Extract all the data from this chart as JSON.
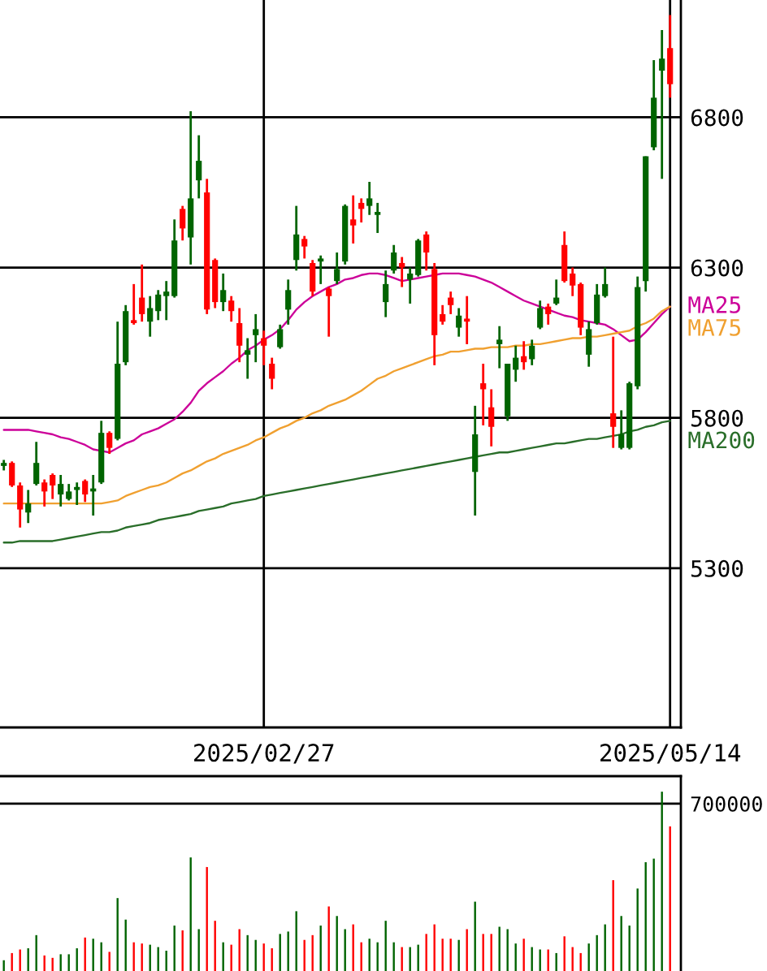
{
  "chart_data": [
    {
      "type": "candlestick",
      "categories": [
        null,
        null,
        null,
        null,
        null,
        null,
        null,
        null,
        null,
        null,
        null,
        null,
        null,
        null,
        null,
        null,
        null,
        null,
        null,
        null,
        null,
        null,
        null,
        null,
        null,
        null,
        null,
        null,
        null,
        null,
        null,
        null,
        "2025/02/27",
        null,
        null,
        null,
        null,
        null,
        null,
        null,
        null,
        null,
        null,
        null,
        null,
        null,
        null,
        null,
        null,
        null,
        null,
        null,
        null,
        null,
        null,
        null,
        null,
        null,
        null,
        null,
        null,
        null,
        null,
        null,
        null,
        null,
        null,
        null,
        null,
        null,
        null,
        null,
        null,
        null,
        null,
        null,
        null,
        null,
        null,
        null,
        null,
        null,
        "2025/05/14"
      ],
      "ohlc": [
        [
          5640,
          5660,
          5625,
          5650
        ],
        [
          5650,
          5655,
          5570,
          5575
        ],
        [
          5575,
          5585,
          5435,
          5495
        ],
        [
          5485,
          5560,
          5450,
          5515
        ],
        [
          5580,
          5720,
          5575,
          5650
        ],
        [
          5585,
          5595,
          5505,
          5555
        ],
        [
          5610,
          5615,
          5530,
          5575
        ],
        [
          5545,
          5610,
          5505,
          5580
        ],
        [
          5530,
          5580,
          5525,
          5555
        ],
        [
          5560,
          5585,
          5510,
          5570
        ],
        [
          5590,
          5595,
          5520,
          5545
        ],
        [
          5555,
          5610,
          5475,
          5565
        ],
        [
          5585,
          5790,
          5580,
          5750
        ],
        [
          5750,
          5755,
          5680,
          5700
        ],
        [
          5730,
          6120,
          5725,
          5980
        ],
        [
          5985,
          6175,
          5975,
          6155
        ],
        [
          6125,
          6245,
          6110,
          6115
        ],
        [
          6200,
          6310,
          6120,
          6145
        ],
        [
          6120,
          6205,
          6070,
          6165
        ],
        [
          6155,
          6225,
          6125,
          6210
        ],
        [
          6205,
          6255,
          6125,
          6220
        ],
        [
          6205,
          6460,
          6200,
          6390
        ],
        [
          6495,
          6505,
          6390,
          6430
        ],
        [
          6400,
          6820,
          6310,
          6530
        ],
        [
          6590,
          6740,
          6530,
          6655
        ],
        [
          6550,
          6595,
          6145,
          6160
        ],
        [
          6325,
          6330,
          6165,
          6185
        ],
        [
          6185,
          6280,
          6155,
          6225
        ],
        [
          6190,
          6205,
          6120,
          6155
        ],
        [
          6115,
          6165,
          5985,
          6040
        ],
        [
          6010,
          6065,
          5930,
          6025
        ],
        [
          6075,
          6145,
          5985,
          6095
        ],
        [
          6065,
          6090,
          5975,
          6040
        ],
        [
          5980,
          6000,
          5895,
          5930
        ],
        [
          6035,
          6110,
          6030,
          6095
        ],
        [
          6160,
          6260,
          6110,
          6225
        ],
        [
          6325,
          6505,
          6290,
          6410
        ],
        [
          6395,
          6405,
          6330,
          6370
        ],
        [
          6315,
          6325,
          6205,
          6220
        ],
        [
          6320,
          6340,
          6245,
          6330
        ],
        [
          6230,
          6235,
          6070,
          6205
        ],
        [
          6255,
          6350,
          6245,
          6295
        ],
        [
          6320,
          6510,
          6310,
          6505
        ],
        [
          6460,
          6540,
          6380,
          6440
        ],
        [
          6515,
          6530,
          6450,
          6495
        ],
        [
          6505,
          6585,
          6475,
          6530
        ],
        [
          6475,
          6515,
          6415,
          6485
        ],
        [
          6185,
          6290,
          6135,
          6245
        ],
        [
          6290,
          6375,
          6280,
          6350
        ],
        [
          6315,
          6335,
          6235,
          6300
        ],
        [
          6260,
          6300,
          6180,
          6280
        ],
        [
          6275,
          6395,
          6270,
          6390
        ],
        [
          6410,
          6420,
          6290,
          6350
        ],
        [
          6295,
          6315,
          5975,
          6075
        ],
        [
          6145,
          6175,
          6110,
          6120
        ],
        [
          6200,
          6220,
          6145,
          6175
        ],
        [
          6100,
          6165,
          6070,
          6140
        ],
        [
          6130,
          6205,
          6045,
          6120
        ],
        [
          5620,
          5840,
          5475,
          5745
        ],
        [
          5915,
          5980,
          5775,
          5895
        ],
        [
          5835,
          5895,
          5705,
          5770
        ],
        [
          6045,
          6105,
          5965,
          6060
        ],
        [
          5805,
          5980,
          5790,
          5980
        ],
        [
          5960,
          6040,
          5920,
          6000
        ],
        [
          6005,
          6055,
          5960,
          5985
        ],
        [
          5995,
          6060,
          5975,
          6040
        ],
        [
          6100,
          6190,
          6095,
          6165
        ],
        [
          6170,
          6180,
          6110,
          6145
        ],
        [
          6180,
          6260,
          6175,
          6200
        ],
        [
          6375,
          6420,
          6250,
          6255
        ],
        [
          6280,
          6300,
          6205,
          6240
        ],
        [
          6245,
          6250,
          6075,
          6100
        ],
        [
          6010,
          6120,
          5970,
          6095
        ],
        [
          6115,
          6245,
          6110,
          6210
        ],
        [
          6205,
          6300,
          6200,
          6245
        ],
        [
          5815,
          6070,
          5700,
          5770
        ],
        [
          5700,
          5825,
          5695,
          5745
        ],
        [
          5700,
          5920,
          5695,
          5915
        ],
        [
          5905,
          6270,
          5895,
          6235
        ],
        [
          6255,
          6670,
          6220,
          6670
        ],
        [
          6700,
          6990,
          6690,
          6865
        ],
        [
          6955,
          7090,
          6595,
          6995
        ],
        [
          7030,
          7140,
          6865,
          6910
        ]
      ],
      "colors": [
        "#006400",
        "#ff0000",
        "#ff0000",
        "#006400",
        "#006400",
        "#ff0000",
        "#ff0000",
        "#006400",
        "#006400",
        "#006400",
        "#ff0000",
        "#006400",
        "#006400",
        "#ff0000",
        "#006400",
        "#006400",
        "#ff0000",
        "#ff0000",
        "#006400",
        "#006400",
        "#006400",
        "#006400",
        "#ff0000",
        "#006400",
        "#006400",
        "#ff0000",
        "#ff0000",
        "#006400",
        "#ff0000",
        "#ff0000",
        "#006400",
        "#006400",
        "#ff0000",
        "#ff0000",
        "#006400",
        "#006400",
        "#006400",
        "#ff0000",
        "#ff0000",
        "#006400",
        "#ff0000",
        "#006400",
        "#006400",
        "#ff0000",
        "#ff0000",
        "#006400",
        "#006400",
        "#006400",
        "#006400",
        "#ff0000",
        "#006400",
        "#006400",
        "#ff0000",
        "#ff0000",
        "#ff0000",
        "#ff0000",
        "#006400",
        "#ff0000",
        "#006400",
        "#ff0000",
        "#ff0000",
        "#006400",
        "#006400",
        "#006400",
        "#ff0000",
        "#006400",
        "#006400",
        "#ff0000",
        "#006400",
        "#ff0000",
        "#ff0000",
        "#ff0000",
        "#006400",
        "#006400",
        "#006400",
        "#ff0000",
        "#006400",
        "#006400",
        "#006400",
        "#006400",
        "#006400",
        "#006400",
        "#ff0000"
      ],
      "series": [
        {
          "name": "MA25",
          "type": "line",
          "color": "#cc0099",
          "values": [
            5760,
            5760,
            5760,
            5760,
            5755,
            5750,
            5745,
            5735,
            5730,
            5720,
            5710,
            5695,
            5690,
            5685,
            5700,
            5715,
            5725,
            5745,
            5755,
            5765,
            5780,
            5795,
            5820,
            5850,
            5890,
            5915,
            5935,
            5955,
            5980,
            6000,
            6025,
            6040,
            6060,
            6075,
            6095,
            6125,
            6160,
            6185,
            6205,
            6220,
            6235,
            6245,
            6260,
            6265,
            6275,
            6280,
            6280,
            6275,
            6265,
            6255,
            6260,
            6265,
            6270,
            6275,
            6280,
            6280,
            6280,
            6275,
            6270,
            6260,
            6250,
            6235,
            6220,
            6205,
            6190,
            6180,
            6170,
            6160,
            6150,
            6140,
            6135,
            6125,
            6120,
            6115,
            6110,
            6095,
            6075,
            6055,
            6060,
            6085,
            6115,
            6145,
            6170
          ]
        },
        {
          "name": "MA75",
          "type": "line",
          "color": "#f0a030",
          "values": [
            5515,
            5515,
            5515,
            5515,
            5515,
            5515,
            5515,
            5515,
            5515,
            5515,
            5515,
            5515,
            5515,
            5520,
            5525,
            5540,
            5550,
            5560,
            5570,
            5575,
            5585,
            5600,
            5615,
            5625,
            5640,
            5655,
            5665,
            5680,
            5690,
            5700,
            5710,
            5725,
            5735,
            5750,
            5765,
            5775,
            5790,
            5800,
            5815,
            5825,
            5840,
            5850,
            5860,
            5875,
            5890,
            5910,
            5930,
            5940,
            5955,
            5965,
            5975,
            5985,
            5995,
            6005,
            6010,
            6020,
            6020,
            6025,
            6030,
            6030,
            6035,
            6035,
            6035,
            6040,
            6040,
            6045,
            6045,
            6050,
            6055,
            6060,
            6065,
            6065,
            6070,
            6070,
            6075,
            6080,
            6085,
            6090,
            6105,
            6115,
            6130,
            6155,
            6170
          ]
        },
        {
          "name": "MA200",
          "type": "line",
          "color": "#2a6e2a",
          "values": [
            5385,
            5385,
            5390,
            5390,
            5390,
            5390,
            5390,
            5395,
            5400,
            5405,
            5410,
            5415,
            5420,
            5420,
            5425,
            5435,
            5440,
            5445,
            5450,
            5460,
            5465,
            5470,
            5475,
            5480,
            5490,
            5495,
            5500,
            5505,
            5515,
            5520,
            5525,
            5530,
            5540,
            5545,
            5550,
            5555,
            5560,
            5565,
            5570,
            5575,
            5580,
            5585,
            5590,
            5595,
            5600,
            5605,
            5610,
            5615,
            5620,
            5625,
            5630,
            5635,
            5640,
            5645,
            5650,
            5655,
            5660,
            5665,
            5670,
            5675,
            5680,
            5685,
            5685,
            5690,
            5695,
            5700,
            5705,
            5710,
            5715,
            5715,
            5720,
            5725,
            5730,
            5730,
            5735,
            5740,
            5745,
            5755,
            5760,
            5770,
            5775,
            5785,
            5790
          ]
        }
      ],
      "ylim": [
        4770,
        7190
      ],
      "yticks": [
        5300,
        5800,
        6300,
        6800
      ],
      "grid": true
    },
    {
      "type": "bar",
      "categories": [
        null,
        null,
        null,
        null,
        null,
        null,
        null,
        null,
        null,
        null,
        null,
        null,
        null,
        null,
        null,
        null,
        null,
        null,
        null,
        null,
        null,
        null,
        null,
        null,
        null,
        null,
        null,
        null,
        null,
        null,
        null,
        null,
        null,
        null,
        null,
        null,
        null,
        null,
        null,
        null,
        null,
        null,
        null,
        null,
        null,
        null,
        null,
        null,
        null,
        null,
        null,
        null,
        null,
        null,
        null,
        null,
        null,
        null,
        null,
        null,
        null,
        null,
        null,
        null,
        null,
        null,
        null,
        null,
        null,
        null,
        null,
        null,
        null,
        null,
        null,
        null,
        null,
        null,
        null,
        null,
        null,
        null,
        null
      ],
      "values": [
        45000,
        75000,
        90000,
        95000,
        150000,
        65000,
        55000,
        70000,
        70000,
        95000,
        140000,
        135000,
        120000,
        80000,
        305000,
        215000,
        120000,
        115000,
        110000,
        100000,
        85000,
        190000,
        170000,
        475000,
        175000,
        435000,
        210000,
        120000,
        110000,
        175000,
        150000,
        130000,
        115000,
        95000,
        155000,
        165000,
        250000,
        130000,
        150000,
        190000,
        270000,
        230000,
        175000,
        195000,
        120000,
        135000,
        120000,
        210000,
        120000,
        100000,
        100000,
        110000,
        155000,
        195000,
        135000,
        135000,
        130000,
        175000,
        290000,
        155000,
        155000,
        185000,
        175000,
        115000,
        135000,
        100000,
        90000,
        90000,
        75000,
        145000,
        100000,
        75000,
        115000,
        150000,
        195000,
        380000,
        230000,
        190000,
        345000,
        455000,
        470000,
        750000,
        605000
      ],
      "colors": [
        "#006400",
        "#ff0000",
        "#ff0000",
        "#006400",
        "#006400",
        "#ff0000",
        "#ff0000",
        "#006400",
        "#006400",
        "#006400",
        "#ff0000",
        "#006400",
        "#006400",
        "#ff0000",
        "#006400",
        "#006400",
        "#ff0000",
        "#ff0000",
        "#006400",
        "#006400",
        "#006400",
        "#006400",
        "#ff0000",
        "#006400",
        "#006400",
        "#ff0000",
        "#ff0000",
        "#006400",
        "#ff0000",
        "#ff0000",
        "#006400",
        "#006400",
        "#ff0000",
        "#ff0000",
        "#006400",
        "#006400",
        "#006400",
        "#ff0000",
        "#ff0000",
        "#006400",
        "#ff0000",
        "#006400",
        "#006400",
        "#ff0000",
        "#ff0000",
        "#006400",
        "#006400",
        "#006400",
        "#006400",
        "#ff0000",
        "#006400",
        "#006400",
        "#ff0000",
        "#ff0000",
        "#ff0000",
        "#ff0000",
        "#006400",
        "#ff0000",
        "#006400",
        "#ff0000",
        "#ff0000",
        "#006400",
        "#006400",
        "#006400",
        "#ff0000",
        "#006400",
        "#006400",
        "#ff0000",
        "#006400",
        "#ff0000",
        "#ff0000",
        "#ff0000",
        "#006400",
        "#006400",
        "#006400",
        "#ff0000",
        "#006400",
        "#006400",
        "#006400",
        "#006400",
        "#006400",
        "#006400",
        "#ff0000"
      ],
      "ylim": [
        0,
        815000
      ],
      "yticks": [
        700000
      ],
      "grid": "y"
    }
  ]
}
